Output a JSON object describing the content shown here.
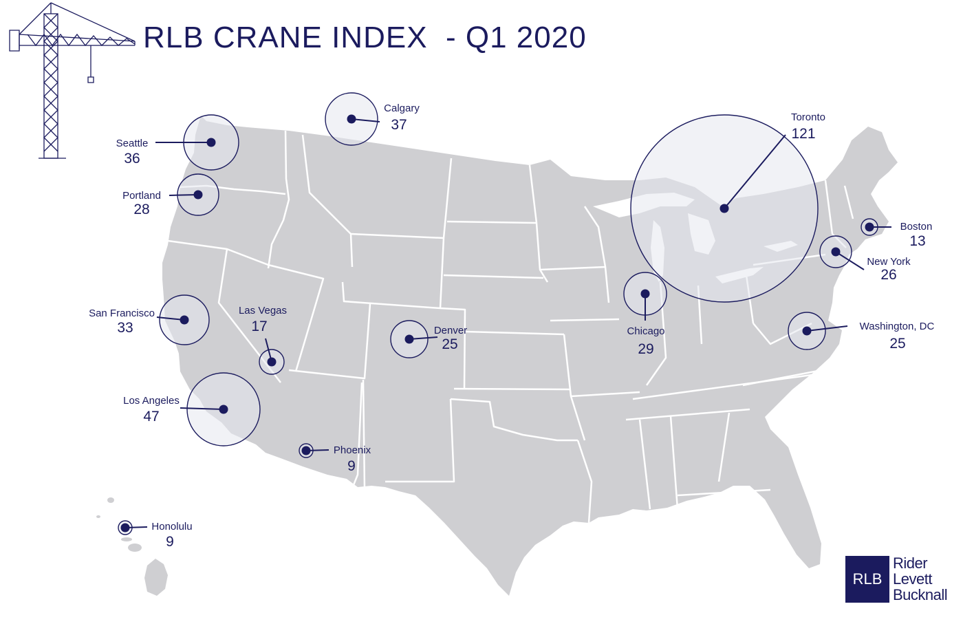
{
  "title": "RLB CRANE INDEX  - Q1 2020",
  "colors": {
    "navy": "#1b1b5e",
    "land": "#cfcfd2",
    "border": "#ffffff",
    "bubble": "#e6e8ee"
  },
  "cities": [
    {
      "id": "toronto",
      "name": "Toronto",
      "count": "121"
    },
    {
      "id": "los-angeles",
      "name": "Los Angeles",
      "count": "47"
    },
    {
      "id": "calgary",
      "name": "Calgary",
      "count": "37"
    },
    {
      "id": "seattle",
      "name": "Seattle",
      "count": "36"
    },
    {
      "id": "san-francisco",
      "name": "San Francisco",
      "count": "33"
    },
    {
      "id": "chicago",
      "name": "Chicago",
      "count": "29"
    },
    {
      "id": "portland",
      "name": "Portland",
      "count": "28"
    },
    {
      "id": "new-york",
      "name": "New York",
      "count": "26"
    },
    {
      "id": "denver",
      "name": "Denver",
      "count": "25"
    },
    {
      "id": "washington-dc",
      "name": "Washington, DC",
      "count": "25"
    },
    {
      "id": "las-vegas",
      "name": "Las Vegas",
      "count": "17"
    },
    {
      "id": "boston",
      "name": "Boston",
      "count": "13"
    },
    {
      "id": "phoenix",
      "name": "Phoenix",
      "count": "9"
    },
    {
      "id": "honolulu",
      "name": "Honolulu",
      "count": "9"
    }
  ],
  "logo": {
    "mark": "RLB",
    "words": [
      "Rider",
      "Levett",
      "Bucknall"
    ]
  }
}
